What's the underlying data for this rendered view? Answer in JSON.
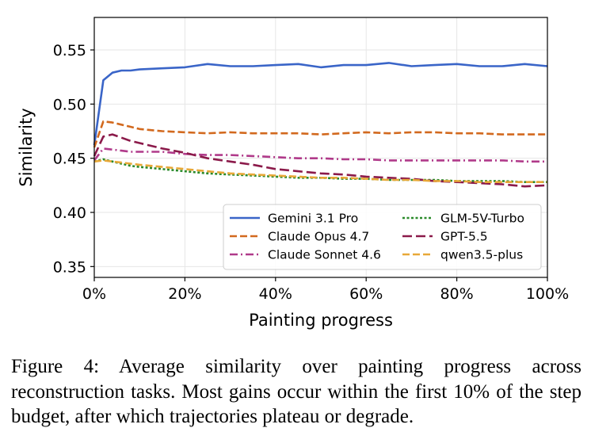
{
  "chart_data": {
    "type": "line",
    "xlabel": "Painting progress",
    "ylabel": "Similarity",
    "xlim": [
      0,
      100
    ],
    "ylim": [
      0.34,
      0.58
    ],
    "xticks": [
      0,
      20,
      40,
      60,
      80,
      100
    ],
    "xtick_labels": [
      "0%",
      "20%",
      "40%",
      "60%",
      "80%",
      "100%"
    ],
    "yticks": [
      0.35,
      0.4,
      0.45,
      0.5,
      0.55
    ],
    "ytick_labels": [
      "0.35",
      "0.40",
      "0.45",
      "0.50",
      "0.55"
    ],
    "grid": true,
    "legend_position": "lower-right",
    "x": [
      0,
      2,
      4,
      6,
      8,
      10,
      15,
      20,
      25,
      30,
      35,
      40,
      45,
      50,
      55,
      60,
      65,
      70,
      75,
      80,
      85,
      90,
      95,
      100
    ],
    "series": [
      {
        "name": "Gemini 3.1 Pro",
        "color": "#3a65c8",
        "dash": "solid",
        "values": [
          0.462,
          0.522,
          0.529,
          0.531,
          0.531,
          0.532,
          0.533,
          0.534,
          0.537,
          0.535,
          0.535,
          0.536,
          0.537,
          0.534,
          0.536,
          0.536,
          0.538,
          0.535,
          0.536,
          0.537,
          0.535,
          0.535,
          0.537,
          0.535
        ]
      },
      {
        "name": "Claude Opus 4.7",
        "color": "#d2691e",
        "dash": "dashed",
        "values": [
          0.46,
          0.484,
          0.483,
          0.481,
          0.479,
          0.477,
          0.475,
          0.474,
          0.473,
          0.474,
          0.473,
          0.473,
          0.473,
          0.472,
          0.473,
          0.474,
          0.473,
          0.474,
          0.474,
          0.473,
          0.473,
          0.472,
          0.472,
          0.472
        ]
      },
      {
        "name": "Claude Sonnet 4.6",
        "color": "#b03a8a",
        "dash": "dashdot",
        "values": [
          0.448,
          0.459,
          0.458,
          0.457,
          0.456,
          0.456,
          0.456,
          0.454,
          0.453,
          0.453,
          0.452,
          0.451,
          0.45,
          0.45,
          0.449,
          0.449,
          0.448,
          0.448,
          0.448,
          0.448,
          0.448,
          0.448,
          0.447,
          0.447
        ]
      },
      {
        "name": "GLM-5V-Turbo",
        "color": "#2a8a2a",
        "dash": "dotted",
        "values": [
          0.447,
          0.449,
          0.447,
          0.445,
          0.443,
          0.442,
          0.44,
          0.438,
          0.436,
          0.435,
          0.434,
          0.433,
          0.432,
          0.432,
          0.431,
          0.431,
          0.43,
          0.43,
          0.43,
          0.429,
          0.429,
          0.429,
          0.428,
          0.428
        ]
      },
      {
        "name": "GPT-5.5",
        "color": "#8b1a4a",
        "dash": "longdash",
        "values": [
          0.452,
          0.47,
          0.472,
          0.469,
          0.466,
          0.464,
          0.459,
          0.455,
          0.45,
          0.447,
          0.444,
          0.44,
          0.438,
          0.436,
          0.435,
          0.433,
          0.432,
          0.431,
          0.429,
          0.428,
          0.427,
          0.426,
          0.424,
          0.425
        ]
      },
      {
        "name": "qwen3.5-plus",
        "color": "#e8a838",
        "dash": "dashed",
        "values": [
          0.447,
          0.448,
          0.447,
          0.446,
          0.445,
          0.444,
          0.442,
          0.44,
          0.438,
          0.436,
          0.435,
          0.434,
          0.433,
          0.432,
          0.432,
          0.431,
          0.43,
          0.43,
          0.429,
          0.429,
          0.428,
          0.428,
          0.428,
          0.428
        ]
      }
    ]
  },
  "caption": "Figure 4: Average similarity over painting progress across reconstruction tasks. Most gains occur within the first 10% of the step budget, after which trajectories plateau or degrade."
}
